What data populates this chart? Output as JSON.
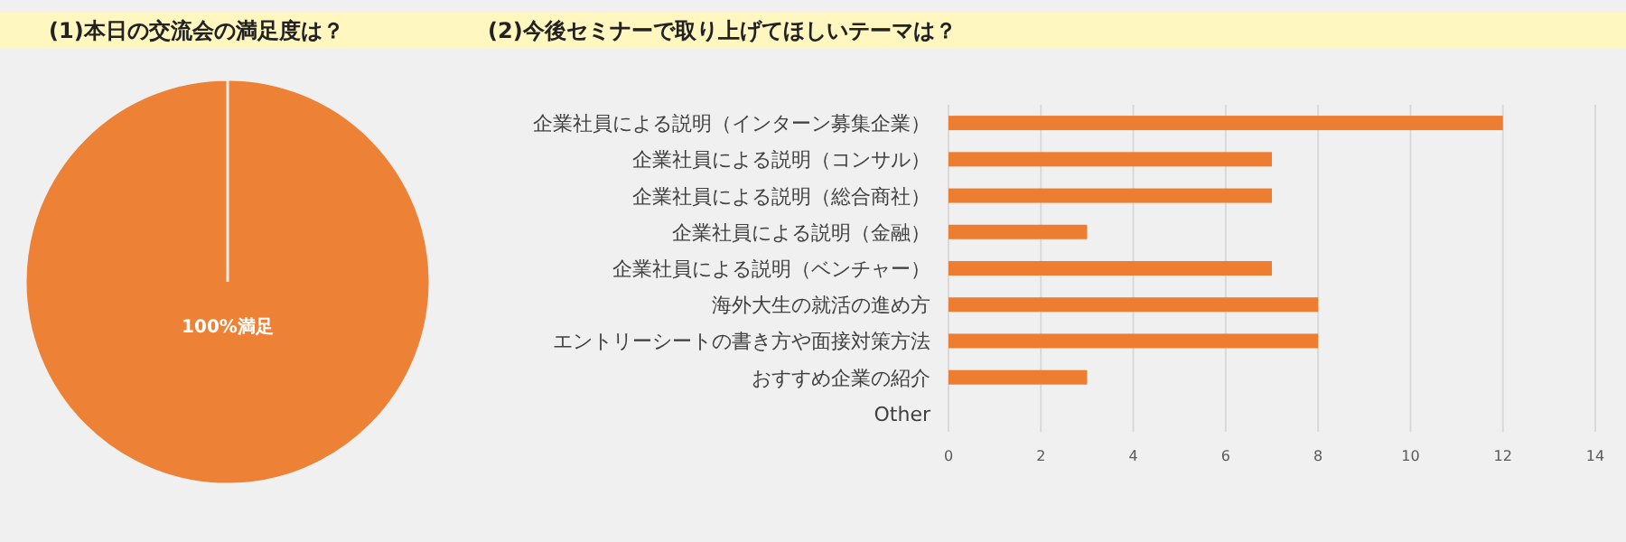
{
  "chart_data": [
    {
      "type": "pie",
      "title": "(1)本日の交流会の満足度は？",
      "categories": [
        "100%満足"
      ],
      "values": [
        100
      ],
      "colors": [
        "#ed8136"
      ]
    },
    {
      "type": "bar",
      "title": "(2)今後セミナーで取り上げてほしいテーマは？",
      "orientation": "horizontal",
      "categories": [
        "企業社員による説明（インターン募集企業）",
        "企業社員による説明（コンサル）",
        "企業社員による説明（総合商社）",
        "企業社員による説明（金融）",
        "企業社員による説明（ベンチャー）",
        "海外大生の就活の進め方",
        "エントリーシートの書き方や面接対策方法",
        "おすすめ企業の紹介",
        "Other"
      ],
      "values": [
        12,
        7,
        7,
        3,
        7,
        8,
        8,
        3,
        0
      ],
      "color": "#ed7d31",
      "xlim": [
        0,
        14
      ],
      "xticks": [
        0,
        2,
        4,
        6,
        8,
        10,
        12,
        14
      ],
      "grid": "x"
    }
  ]
}
